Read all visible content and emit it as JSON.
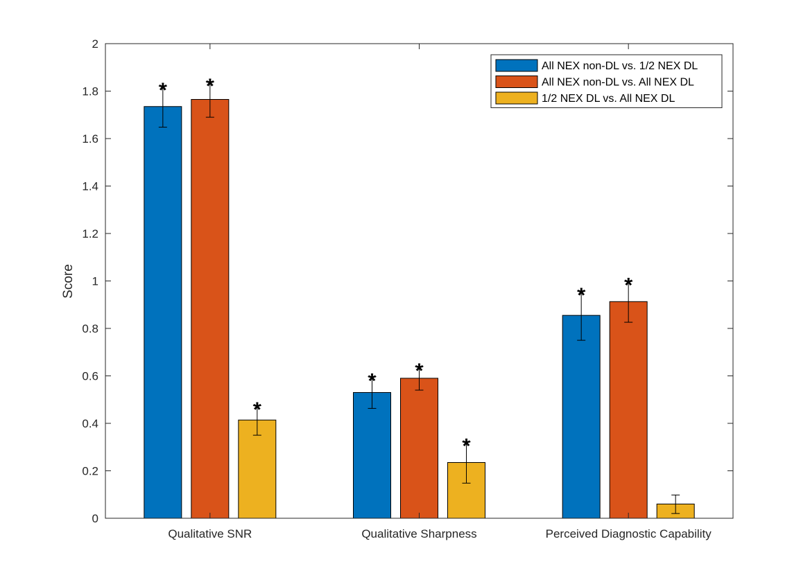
{
  "chart_data": {
    "type": "bar",
    "title": "",
    "xlabel": "",
    "ylabel": "Score",
    "ylim": [
      0,
      2
    ],
    "yticks": [
      "0",
      "0.2",
      "0.4",
      "0.6",
      "0.8",
      "1",
      "1.2",
      "1.4",
      "1.6",
      "1.8",
      "2"
    ],
    "grid": false,
    "legend_position": "top-right",
    "categories": [
      "Qualitative SNR",
      "Qualitative Sharpness",
      "Perceived Diagnostic Capability"
    ],
    "series": [
      {
        "name": "All NEX non-DL vs. 1/2 NEX DL",
        "color": "#0072BD",
        "values": [
          1.735,
          0.53,
          0.855
        ],
        "err_low": [
          1.648,
          0.463,
          0.75
        ],
        "err_high": [
          1.822,
          0.597,
          0.958
        ],
        "significant": [
          true,
          true,
          true
        ]
      },
      {
        "name": "All NEX non-DL vs. All NEX DL",
        "color": "#D95319",
        "values": [
          1.765,
          0.59,
          0.913
        ],
        "err_low": [
          1.69,
          0.54,
          0.826
        ],
        "err_high": [
          1.84,
          0.64,
          1.0
        ],
        "significant": [
          true,
          true,
          true
        ]
      },
      {
        "name": "1/2 NEX DL vs. All NEX DL",
        "color": "#EDB120",
        "values": [
          0.414,
          0.235,
          0.06
        ],
        "err_low": [
          0.35,
          0.148,
          0.02
        ],
        "err_high": [
          0.476,
          0.323,
          0.098
        ],
        "significant": [
          true,
          true,
          false
        ]
      }
    ],
    "significance_marker": "*"
  }
}
